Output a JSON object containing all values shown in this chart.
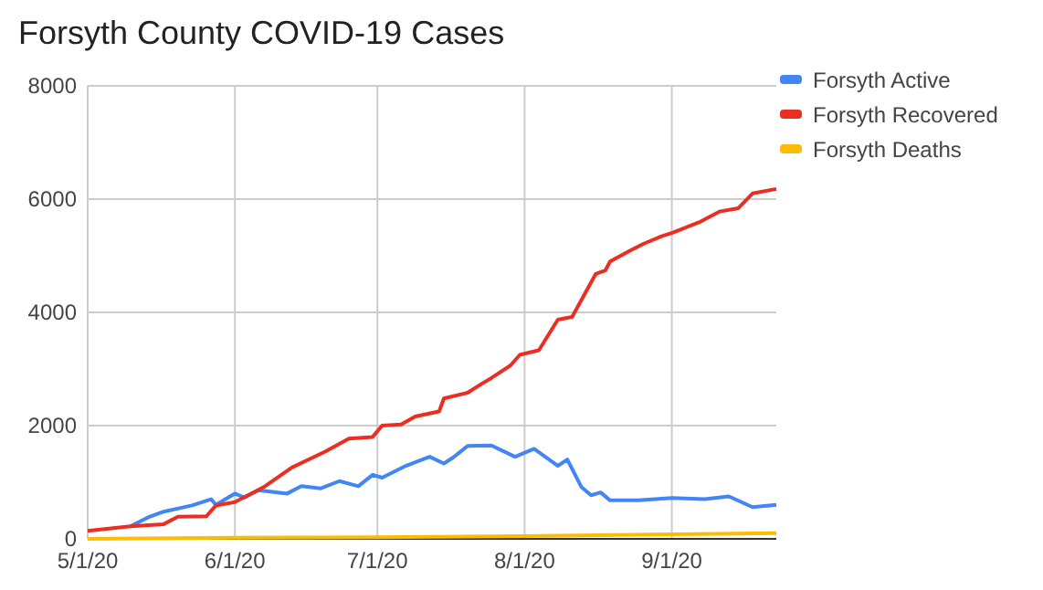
{
  "chart_data": {
    "type": "line",
    "title": "Forsyth County COVID-19 Cases",
    "xlim": [
      "2020-05-01",
      "2020-09-23"
    ],
    "xticks": [
      {
        "value": "2020-05-01",
        "label": "5/1/20"
      },
      {
        "value": "2020-06-01",
        "label": "6/1/20"
      },
      {
        "value": "2020-07-01",
        "label": "7/1/20"
      },
      {
        "value": "2020-08-01",
        "label": "8/1/20"
      },
      {
        "value": "2020-09-01",
        "label": "9/1/20"
      }
    ],
    "ylim": [
      0,
      8000
    ],
    "yticks": [
      0,
      2000,
      4000,
      6000,
      8000
    ],
    "grid": true,
    "legend": "right",
    "marker": "none",
    "line_style": "solid",
    "series": [
      {
        "name": "Forsyth Active",
        "color": "#4285f4",
        "x": [
          "2020-05-10",
          "2020-05-14",
          "2020-05-17",
          "2020-05-23",
          "2020-05-27",
          "2020-05-28",
          "2020-06-01",
          "2020-06-03",
          "2020-06-06",
          "2020-06-12",
          "2020-06-15",
          "2020-06-19",
          "2020-06-23",
          "2020-06-27",
          "2020-06-30",
          "2020-07-02",
          "2020-07-07",
          "2020-07-12",
          "2020-07-15",
          "2020-07-17",
          "2020-07-20",
          "2020-07-25",
          "2020-07-30",
          "2020-08-03",
          "2020-08-08",
          "2020-08-10",
          "2020-08-13",
          "2020-08-15",
          "2020-08-17",
          "2020-08-19",
          "2020-08-25",
          "2020-09-01",
          "2020-09-08",
          "2020-09-13",
          "2020-09-18",
          "2020-09-23"
        ],
        "values": [
          220,
          390,
          480,
          590,
          700,
          600,
          800,
          730,
          860,
          800,
          930,
          890,
          1020,
          930,
          1130,
          1080,
          1290,
          1450,
          1330,
          1440,
          1640,
          1650,
          1450,
          1590,
          1290,
          1400,
          910,
          770,
          820,
          680,
          680,
          720,
          700,
          750,
          560,
          600
        ]
      },
      {
        "name": "Forsyth Recovered",
        "color": "#ea2e22",
        "x": [
          "2020-05-01",
          "2020-05-10",
          "2020-05-17",
          "2020-05-20",
          "2020-05-26",
          "2020-05-28",
          "2020-06-01",
          "2020-06-07",
          "2020-06-13",
          "2020-06-20",
          "2020-06-25",
          "2020-06-30",
          "2020-07-02",
          "2020-07-06",
          "2020-07-09",
          "2020-07-14",
          "2020-07-15",
          "2020-07-20",
          "2020-07-23",
          "2020-07-25",
          "2020-07-29",
          "2020-07-31",
          "2020-08-04",
          "2020-08-08",
          "2020-08-11",
          "2020-08-16",
          "2020-08-18",
          "2020-08-19",
          "2020-08-23",
          "2020-08-26",
          "2020-08-30",
          "2020-09-01",
          "2020-09-07",
          "2020-09-11",
          "2020-09-15",
          "2020-09-18",
          "2020-09-23"
        ],
        "values": [
          140,
          220,
          260,
          390,
          400,
          590,
          650,
          910,
          1260,
          1540,
          1770,
          1800,
          2000,
          2020,
          2160,
          2250,
          2480,
          2580,
          2740,
          2840,
          3060,
          3250,
          3330,
          3870,
          3920,
          4680,
          4740,
          4900,
          5080,
          5210,
          5350,
          5400,
          5600,
          5780,
          5840,
          6100,
          6180
        ]
      },
      {
        "name": "Forsyth Deaths",
        "color": "#fbbc04",
        "x": [
          "2020-05-01",
          "2020-06-01",
          "2020-07-01",
          "2020-08-01",
          "2020-09-01",
          "2020-09-23"
        ],
        "values": [
          0,
          20,
          30,
          50,
          80,
          100
        ]
      }
    ]
  }
}
